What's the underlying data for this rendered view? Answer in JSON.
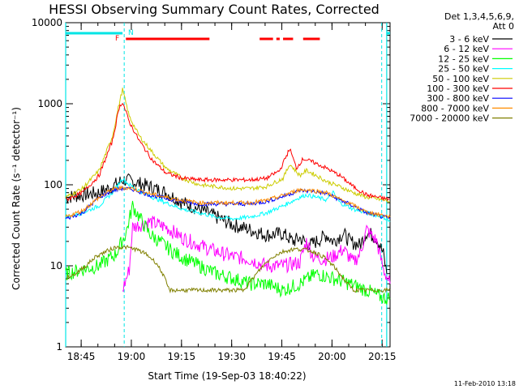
{
  "chart_data": {
    "type": "line",
    "title": "HESSI Observing Summary Count Rates, Corrected",
    "xlabel": "Start Time (19-Sep-03 18:40:22)",
    "ylabel": "Corrected Count Rate (s⁻¹ detector⁻¹)",
    "yscale": "log",
    "ylim": [
      1,
      10000
    ],
    "yticks": [
      1,
      10,
      100,
      1000,
      10000
    ],
    "yticklabels": [
      "1",
      "10",
      "100",
      "1000",
      "10000"
    ],
    "xlim_minutes": [
      0,
      97
    ],
    "xticklabels": [
      "18:45",
      "19:00",
      "19:15",
      "19:30",
      "19:45",
      "20:00",
      "20:15"
    ],
    "legend_header": [
      "Det 1,3,4,5,6,9,",
      "Att 0"
    ],
    "legend_position": "right",
    "flags": {
      "F": "F",
      "N": "N"
    },
    "timestamp": "11-Feb-2010 13:18",
    "series": [
      {
        "name": "3 - 6 keV",
        "color": "#000000",
        "points": [
          [
            0,
            70
          ],
          [
            10,
            80
          ],
          [
            14,
            95
          ],
          [
            17,
            115
          ],
          [
            20,
            110
          ],
          [
            25,
            95
          ],
          [
            30,
            80
          ],
          [
            35,
            60
          ],
          [
            40,
            50
          ],
          [
            45,
            40
          ],
          [
            50,
            32
          ],
          [
            55,
            28
          ],
          [
            60,
            24
          ],
          [
            65,
            25
          ],
          [
            68,
            20
          ],
          [
            70,
            22
          ],
          [
            73,
            18
          ],
          [
            75,
            20
          ],
          [
            78,
            24
          ],
          [
            80,
            20
          ],
          [
            83,
            25
          ],
          [
            85,
            20
          ],
          [
            88,
            18
          ],
          [
            90,
            26
          ],
          [
            93,
            22
          ],
          [
            95,
            14
          ],
          [
            96,
            8
          ]
        ]
      },
      {
        "name": "6 - 12 keV",
        "color": "#ff00ff",
        "points": [
          [
            17,
            5
          ],
          [
            19,
            9
          ],
          [
            20,
            30
          ],
          [
            25,
            35
          ],
          [
            30,
            30
          ],
          [
            35,
            22
          ],
          [
            40,
            18
          ],
          [
            45,
            15
          ],
          [
            50,
            13
          ],
          [
            55,
            12
          ],
          [
            60,
            10
          ],
          [
            65,
            10
          ],
          [
            70,
            11
          ],
          [
            72,
            20
          ],
          [
            74,
            13
          ],
          [
            77,
            12
          ],
          [
            80,
            13
          ],
          [
            83,
            16
          ],
          [
            86,
            11
          ],
          [
            88,
            14
          ],
          [
            90,
            28
          ],
          [
            93,
            20
          ],
          [
            95,
            9
          ],
          [
            97,
            6
          ]
        ]
      },
      {
        "name": "12 - 25 keV",
        "color": "#00ff00",
        "points": [
          [
            0,
            8
          ],
          [
            5,
            9
          ],
          [
            10,
            10
          ],
          [
            15,
            14
          ],
          [
            18,
            25
          ],
          [
            20,
            55
          ],
          [
            22,
            40
          ],
          [
            25,
            25
          ],
          [
            28,
            20
          ],
          [
            32,
            15
          ],
          [
            36,
            12
          ],
          [
            40,
            10
          ],
          [
            45,
            8
          ],
          [
            50,
            7
          ],
          [
            55,
            6
          ],
          [
            60,
            6
          ],
          [
            65,
            5
          ],
          [
            70,
            6
          ],
          [
            75,
            8
          ],
          [
            80,
            7
          ],
          [
            85,
            6
          ],
          [
            90,
            5
          ],
          [
            95,
            4
          ],
          [
            97,
            4
          ]
        ]
      },
      {
        "name": "25 - 50 keV",
        "color": "#00ffff",
        "points": [
          [
            0,
            40
          ],
          [
            5,
            45
          ],
          [
            10,
            55
          ],
          [
            14,
            80
          ],
          [
            17,
            120
          ],
          [
            19,
            100
          ],
          [
            22,
            85
          ],
          [
            26,
            70
          ],
          [
            30,
            60
          ],
          [
            35,
            50
          ],
          [
            40,
            45
          ],
          [
            45,
            40
          ],
          [
            50,
            38
          ],
          [
            55,
            40
          ],
          [
            60,
            45
          ],
          [
            65,
            55
          ],
          [
            70,
            70
          ],
          [
            72,
            75
          ],
          [
            75,
            70
          ],
          [
            78,
            65
          ],
          [
            80,
            80
          ],
          [
            82,
            60
          ],
          [
            86,
            50
          ],
          [
            90,
            45
          ],
          [
            95,
            40
          ],
          [
            97,
            35
          ]
        ]
      },
      {
        "name": "50 - 100 keV",
        "color": "#cccc00",
        "points": [
          [
            0,
            70
          ],
          [
            5,
            90
          ],
          [
            10,
            150
          ],
          [
            14,
            400
          ],
          [
            16,
            1000
          ],
          [
            17,
            1500
          ],
          [
            19,
            700
          ],
          [
            22,
            400
          ],
          [
            26,
            250
          ],
          [
            30,
            160
          ],
          [
            35,
            120
          ],
          [
            40,
            100
          ],
          [
            45,
            95
          ],
          [
            50,
            90
          ],
          [
            55,
            90
          ],
          [
            60,
            95
          ],
          [
            65,
            120
          ],
          [
            67,
            180
          ],
          [
            70,
            130
          ],
          [
            72,
            150
          ],
          [
            75,
            130
          ],
          [
            78,
            110
          ],
          [
            82,
            95
          ],
          [
            86,
            80
          ],
          [
            90,
            70
          ],
          [
            95,
            65
          ],
          [
            97,
            62
          ]
        ]
      },
      {
        "name": "100 - 300 keV",
        "color": "#ff0000",
        "points": [
          [
            0,
            65
          ],
          [
            5,
            80
          ],
          [
            10,
            130
          ],
          [
            14,
            350
          ],
          [
            16,
            900
          ],
          [
            17,
            1050
          ],
          [
            19,
            600
          ],
          [
            22,
            350
          ],
          [
            26,
            200
          ],
          [
            30,
            140
          ],
          [
            35,
            120
          ],
          [
            40,
            115
          ],
          [
            45,
            115
          ],
          [
            50,
            115
          ],
          [
            55,
            115
          ],
          [
            60,
            120
          ],
          [
            64,
            150
          ],
          [
            67,
            280
          ],
          [
            69,
            160
          ],
          [
            71,
            210
          ],
          [
            74,
            190
          ],
          [
            78,
            160
          ],
          [
            82,
            130
          ],
          [
            86,
            95
          ],
          [
            90,
            75
          ],
          [
            95,
            68
          ],
          [
            97,
            66
          ]
        ]
      },
      {
        "name": "300 - 800 keV",
        "color": "#0000ff",
        "points": [
          [
            0,
            38
          ],
          [
            5,
            45
          ],
          [
            10,
            70
          ],
          [
            14,
            85
          ],
          [
            17,
            90
          ],
          [
            20,
            88
          ],
          [
            25,
            75
          ],
          [
            30,
            68
          ],
          [
            35,
            62
          ],
          [
            40,
            58
          ],
          [
            45,
            58
          ],
          [
            50,
            58
          ],
          [
            55,
            58
          ],
          [
            60,
            62
          ],
          [
            65,
            72
          ],
          [
            70,
            85
          ],
          [
            74,
            83
          ],
          [
            78,
            78
          ],
          [
            82,
            65
          ],
          [
            86,
            55
          ],
          [
            90,
            45
          ],
          [
            95,
            40
          ],
          [
            97,
            38
          ]
        ]
      },
      {
        "name": "800 - 7000 keV",
        "color": "#ff8c00",
        "points": [
          [
            0,
            40
          ],
          [
            5,
            48
          ],
          [
            10,
            70
          ],
          [
            14,
            88
          ],
          [
            17,
            92
          ],
          [
            20,
            90
          ],
          [
            25,
            78
          ],
          [
            30,
            70
          ],
          [
            35,
            64
          ],
          [
            40,
            60
          ],
          [
            45,
            60
          ],
          [
            50,
            60
          ],
          [
            55,
            60
          ],
          [
            60,
            64
          ],
          [
            65,
            74
          ],
          [
            70,
            87
          ],
          [
            74,
            85
          ],
          [
            78,
            80
          ],
          [
            82,
            66
          ],
          [
            86,
            56
          ],
          [
            90,
            46
          ],
          [
            95,
            42
          ],
          [
            97,
            40
          ]
        ]
      },
      {
        "name": "7000 - 20000 keV",
        "color": "#808000",
        "points": [
          [
            0,
            7
          ],
          [
            3,
            8
          ],
          [
            6,
            10
          ],
          [
            9,
            13
          ],
          [
            12,
            15
          ],
          [
            15,
            17
          ],
          [
            18,
            17
          ],
          [
            21,
            16
          ],
          [
            24,
            14
          ],
          [
            27,
            11
          ],
          [
            29,
            8
          ],
          [
            31,
            5
          ],
          [
            35,
            5
          ],
          [
            40,
            5
          ],
          [
            45,
            5
          ],
          [
            50,
            5
          ],
          [
            53,
            5
          ],
          [
            56,
            7
          ],
          [
            59,
            10
          ],
          [
            62,
            13
          ],
          [
            65,
            15
          ],
          [
            68,
            16
          ],
          [
            71,
            16
          ],
          [
            74,
            15
          ],
          [
            77,
            13
          ],
          [
            80,
            10
          ],
          [
            83,
            7
          ],
          [
            86,
            5
          ],
          [
            90,
            5
          ],
          [
            95,
            5
          ],
          [
            97,
            5
          ]
        ]
      }
    ],
    "attenuator_segments": [
      [
        0,
        17
      ],
      [
        96,
        97
      ]
    ],
    "flare_segments": [
      [
        18,
        43
      ],
      [
        58,
        62
      ],
      [
        63,
        64
      ],
      [
        65,
        68
      ],
      [
        71,
        76
      ]
    ],
    "vlines_solid": [
      0,
      96
    ],
    "vlines_dashed": [
      17.5,
      94.5
    ]
  }
}
